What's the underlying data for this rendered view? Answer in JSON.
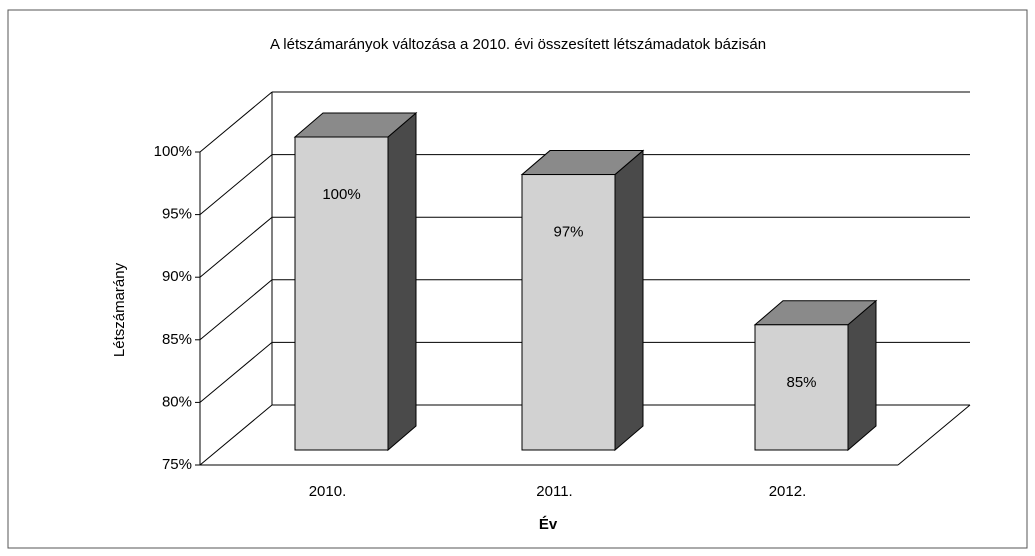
{
  "chart_data": {
    "type": "bar3d",
    "title": "A létszámarányok változása a 2010. évi összesített létszámadatok bázisán",
    "x_label": "Év",
    "y_label": "Létszámarány",
    "categories": [
      "2010.",
      "2011.",
      "2012."
    ],
    "values": [
      100,
      97,
      85
    ],
    "value_labels": [
      "100%",
      "97%",
      "85%"
    ],
    "color": "#d2d2d2",
    "ylim": [
      75,
      100
    ],
    "yticks": [
      {
        "value": 75,
        "label": "75%"
      },
      {
        "value": 80,
        "label": "80%"
      },
      {
        "value": 85,
        "label": "85%"
      },
      {
        "value": 90,
        "label": "90%"
      },
      {
        "value": 95,
        "label": "95%"
      },
      {
        "value": 100,
        "label": "100%"
      }
    ],
    "grid": true
  }
}
